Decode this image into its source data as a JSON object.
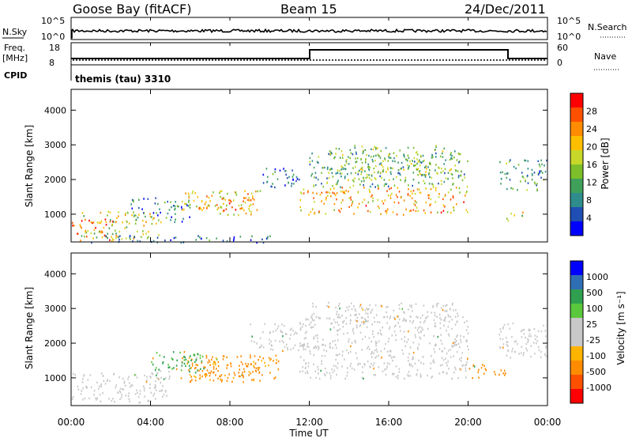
{
  "header": {
    "station": "Goose Bay (fitACF)",
    "beam": "Beam 15",
    "date": "24/Dec/2011"
  },
  "top_panels": {
    "nsky_label": "N.Sky",
    "nsearch_label": "N.Search",
    "nsky_ticks": [
      "10^5",
      "10^0"
    ],
    "nsearch_ticks": [
      "10^5",
      "10^0"
    ],
    "freq_label": "Freq.",
    "freq_unit": "[MHz]",
    "freq_ticks": [
      "18",
      "8"
    ],
    "nave_label": "Nave",
    "nave_ticks": [
      "60",
      "0"
    ],
    "cpid_label": "CPID",
    "cpid_value": "themis (tau) 3310"
  },
  "colors": {
    "power_scale": [
      "#0000ff",
      "#1f4eb4",
      "#2f8c8c",
      "#3fa05a",
      "#7dbf2a",
      "#c8d82a",
      "#ffbf00",
      "#ff8c00",
      "#ff5000",
      "#ff0000"
    ],
    "velocity_scale": [
      "#ff0000",
      "#ff5000",
      "#ff8c00",
      "#ffb400",
      "#c8c8c8",
      "#c8c8c8",
      "#5ac83c",
      "#2fa050",
      "#2f6eb4",
      "#0000ff"
    ]
  },
  "chart_data": [
    {
      "type": "heatmap",
      "name": "power",
      "ylabel": "Slant Range [km]",
      "yticks": [
        "1000",
        "2000",
        "3000",
        "4000"
      ],
      "ylim": [
        200,
        4600
      ],
      "colorbar_label": "Power [dB]",
      "colorbar_ticks": [
        "4",
        "8",
        "12",
        "16",
        "20",
        "24",
        "28"
      ],
      "clim": [
        0,
        32
      ],
      "regions": [
        {
          "t0": 0.0,
          "t1": 2.2,
          "r0": 250,
          "r1": 900,
          "level": 26
        },
        {
          "t0": 0.5,
          "t1": 4.5,
          "r0": 300,
          "r1": 1100,
          "level": 18
        },
        {
          "t0": 3.0,
          "t1": 6.0,
          "r0": 800,
          "r1": 1500,
          "level": 8
        },
        {
          "t0": 5.5,
          "t1": 9.5,
          "r0": 1000,
          "r1": 1700,
          "level": 20
        },
        {
          "t0": 6.0,
          "t1": 9.0,
          "r0": 1100,
          "r1": 1500,
          "level": 25
        },
        {
          "t0": 9.5,
          "t1": 11.5,
          "r0": 1800,
          "r1": 2400,
          "level": 6
        },
        {
          "t0": 11.5,
          "t1": 20.0,
          "r0": 1000,
          "r1": 1800,
          "level": 22
        },
        {
          "t0": 12.0,
          "t1": 20.0,
          "r0": 1800,
          "r1": 2800,
          "level": 12
        },
        {
          "t0": 13.0,
          "t1": 19.5,
          "r0": 2000,
          "r1": 3000,
          "level": 14
        },
        {
          "t0": 21.5,
          "t1": 24.0,
          "r0": 1700,
          "r1": 2600,
          "level": 10
        },
        {
          "t0": 21.8,
          "t1": 23.0,
          "r0": 800,
          "r1": 1100,
          "level": 18
        },
        {
          "t0": 1.0,
          "t1": 10.0,
          "r0": 200,
          "r1": 400,
          "level": 6
        }
      ]
    },
    {
      "type": "heatmap",
      "name": "velocity",
      "ylabel": "Slant Range [km]",
      "yticks": [
        "1000",
        "2000",
        "3000",
        "4000"
      ],
      "ylim": [
        200,
        4600
      ],
      "colorbar_label": "Velocity [m s⁻¹]",
      "colorbar_ticks": [
        "1000",
        "500",
        "100",
        "25",
        "-25",
        "-100",
        "-500",
        "-1000"
      ],
      "xlabel": "Time UT",
      "xticks": [
        "00:00",
        "04:00",
        "08:00",
        "12:00",
        "16:00",
        "20:00",
        "00:00"
      ],
      "xlim": [
        0,
        24
      ],
      "regions": [
        {
          "t0": 0.0,
          "t1": 5.0,
          "r0": 300,
          "r1": 1200,
          "level": 0
        },
        {
          "t0": 5.5,
          "t1": 10.5,
          "r0": 900,
          "r1": 1700,
          "level": -150
        },
        {
          "t0": 6.0,
          "t1": 9.5,
          "r0": 1100,
          "r1": 1500,
          "level": -300
        },
        {
          "t0": 4.0,
          "t1": 7.0,
          "r0": 1200,
          "r1": 1800,
          "level": 120
        },
        {
          "t0": 9.0,
          "t1": 12.0,
          "r0": 1800,
          "r1": 2600,
          "level": 0
        },
        {
          "t0": 11.5,
          "t1": 20.0,
          "r0": 1000,
          "r1": 2800,
          "level": 0
        },
        {
          "t0": 12.0,
          "t1": 19.5,
          "r0": 2600,
          "r1": 3200,
          "level": 0
        },
        {
          "t0": 21.5,
          "t1": 24.0,
          "r0": 1600,
          "r1": 2600,
          "level": 0
        },
        {
          "t0": 20.0,
          "t1": 22.0,
          "r0": 1000,
          "r1": 1400,
          "level": -300
        }
      ]
    }
  ]
}
